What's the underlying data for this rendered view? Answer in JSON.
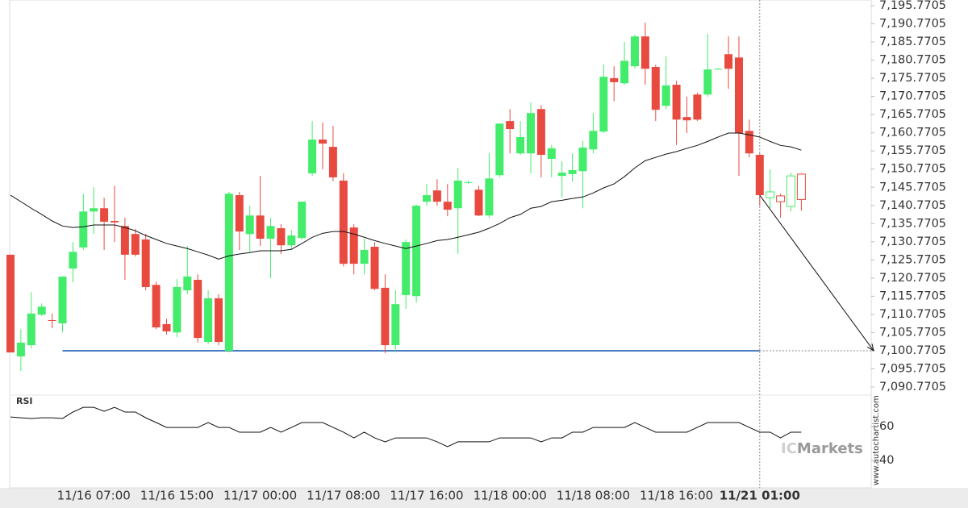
{
  "chart_data": {
    "type": "candlestick",
    "categories": [
      null,
      null,
      null,
      null,
      null,
      null,
      null,
      null,
      "11/16 07:00",
      null,
      null,
      null,
      null,
      null,
      null,
      null,
      "11/16 15:00",
      null,
      null,
      null,
      null,
      null,
      null,
      null,
      "11/17 00:00",
      null,
      null,
      null,
      null,
      null,
      null,
      null,
      "11/17 08:00",
      null,
      null,
      null,
      null,
      null,
      null,
      null,
      "11/17 16:00",
      null,
      null,
      null,
      null,
      null,
      null,
      null,
      "11/18 00:00",
      null,
      null,
      null,
      null,
      null,
      null,
      null,
      "11/18 08:00",
      null,
      null,
      null,
      null,
      null,
      null,
      null,
      "11/18 16:00",
      null,
      null,
      null,
      null,
      null,
      null,
      null,
      "11/21 01:00",
      null,
      null,
      null,
      null
    ],
    "open": [
      7127.2,
      7099.2,
      7102.3,
      7110.7,
      7109.2,
      7108.3,
      7123.4,
      7129.2,
      7139.1,
      7140.0,
      7136.5,
      7135.1,
      7132.9,
      7131.4,
      7118.9,
      7108.1,
      7105.8,
      7117.4,
      7120.3,
      7103.2,
      7115.2,
      7100.7,
      7143.6,
      7132.9,
      7138.0,
      7131.6,
      7134.5,
      7129.8,
      7131.8,
      7149.6,
      7158.9,
      7156.9,
      7147.6,
      7134.7,
      7124.7,
      7129.4,
      7118.1,
      7102.3,
      7116.1,
      7115.8,
      7141.8,
      7144.9,
      7141.8,
      7140.0,
      7147.1,
      7145.1,
      7138.0,
      7149.1,
      7164.0,
      7155.1,
      7155.1,
      7167.3,
      7153.6,
      7148.9,
      7149.4,
      7150.2,
      7156.2,
      7161.1,
      7175.8,
      7174.4,
      7179.1,
      7187.3,
      7178.9,
      7168.2,
      7174.0,
      7165.1,
      7171.3,
      7171.3,
      7178.3,
      7182.4,
      7181.5,
      7161.3,
      7154.7,
      7142.9,
      7143.4,
      7140.5,
      7149.4
    ],
    "high": [
      7127.2,
      7106.7,
      7116.9,
      7113.8,
      7111.0,
      7121.2,
      7130.7,
      7144.0,
      7145.8,
      7142.9,
      7146.2,
      7137.4,
      7134.3,
      7132.9,
      7119.8,
      7109.6,
      7120.5,
      7129.6,
      7121.8,
      7117.4,
      7116.3,
      7144.5,
      7144.5,
      7140.7,
      7148.9,
      7137.4,
      7135.6,
      7134.0,
      7141.8,
      7164.0,
      7163.6,
      7162.7,
      7149.6,
      7135.6,
      7131.6,
      7130.7,
      7121.8,
      7117.4,
      7131.4,
      7141.0,
      7146.7,
      7148.0,
      7146.7,
      7151.1,
      7147.6,
      7146.2,
      7155.1,
      7163.3,
      7167.3,
      7164.0,
      7169.1,
      7168.4,
      7157.4,
      7152.9,
      7155.1,
      7158.5,
      7166.2,
      7179.5,
      7179.1,
      7185.8,
      7187.8,
      7191.1,
      7179.5,
      7181.8,
      7175.1,
      7170.7,
      7171.8,
      7188.0,
      7178.6,
      7187.3,
      7187.3,
      7164.4,
      7155.1,
      7150.7,
      7144.0,
      7149.8,
      7149.6
    ],
    "low": [
      7100.3,
      7095.2,
      7101.4,
      7110.3,
      7107.0,
      7105.8,
      7119.6,
      7128.5,
      7132.9,
      7128.5,
      7130.7,
      7120.3,
      7126.7,
      7117.4,
      7106.7,
      7105.2,
      7104.5,
      7116.3,
      7103.0,
      7102.5,
      7102.3,
      7100.3,
      7128.5,
      7128.0,
      7129.6,
      7120.7,
      7127.4,
      7128.5,
      7131.4,
      7148.9,
      7150.7,
      7147.4,
      7124.0,
      7121.8,
      7121.8,
      7117.4,
      7100.1,
      7100.3,
      7112.3,
      7114.0,
      7140.7,
      7140.7,
      7137.8,
      7127.4,
      7146.7,
      7137.8,
      7137.4,
      7148.5,
      7155.1,
      7154.7,
      7149.6,
      7148.5,
      7148.5,
      7142.9,
      7147.4,
      7140.0,
      7155.1,
      7160.7,
      7169.5,
      7174.0,
      7178.4,
      7174.0,
      7164.0,
      7167.3,
      7157.4,
      7160.7,
      7164.0,
      7170.7,
      7178.2,
      7172.9,
      7148.9,
      7154.0,
      7140.7,
      7140.0,
      7137.4,
      7139.1,
      7139.3
    ],
    "close": [
      7100.3,
      7103.0,
      7111.0,
      7112.9,
      7109.0,
      7121.2,
      7128.0,
      7139.1,
      7140.0,
      7136.3,
      7136.1,
      7127.2,
      7127.2,
      7118.3,
      7107.2,
      7106.1,
      7118.3,
      7121.2,
      7104.3,
      7115.2,
      7103.2,
      7144.0,
      7133.6,
      7138.0,
      7131.6,
      7135.1,
      7129.8,
      7132.5,
      7141.8,
      7158.9,
      7157.8,
      7148.5,
      7124.7,
      7124.7,
      7128.5,
      7117.8,
      7102.3,
      7113.6,
      7130.7,
      7140.7,
      7143.6,
      7141.8,
      7139.6,
      7147.6,
      7147.2,
      7138.0,
      7148.2,
      7163.3,
      7161.8,
      7159.6,
      7166.2,
      7154.7,
      7156.5,
      7149.8,
      7150.5,
      7156.7,
      7161.3,
      7176.2,
      7174.7,
      7180.6,
      7187.3,
      7178.4,
      7167.1,
      7173.8,
      7164.4,
      7164.2,
      7164.4,
      7178.2,
      7178.4,
      7178.4,
      7160.7,
      7155.1,
      7143.6,
      7144.5,
      7141.8,
      7148.9,
      7142.4
    ],
    "moving_average": [
      7143.6,
      7141.8,
      7140.0,
      7138.3,
      7136.5,
      7135.1,
      7134.7,
      7134.9,
      7135.4,
      7135.4,
      7135.4,
      7134.7,
      7133.8,
      7132.5,
      7131.4,
      7130.3,
      7129.6,
      7128.9,
      7128.0,
      7127.1,
      7126.0,
      7126.9,
      7127.4,
      7127.8,
      7128.3,
      7128.3,
      7128.3,
      7128.7,
      7130.3,
      7132.0,
      7133.1,
      7133.6,
      7133.6,
      7132.9,
      7132.0,
      7131.1,
      7130.3,
      7129.6,
      7128.9,
      7129.6,
      7130.3,
      7131.1,
      7131.4,
      7132.0,
      7132.7,
      7133.4,
      7134.5,
      7135.8,
      7137.4,
      7138.3,
      7140.0,
      7140.5,
      7141.8,
      7142.2,
      7142.7,
      7143.1,
      7144.2,
      7145.6,
      7146.7,
      7148.7,
      7151.1,
      7153.1,
      7154.0,
      7154.9,
      7155.6,
      7156.5,
      7157.3,
      7158.4,
      7159.6,
      7160.7,
      7160.7,
      7160.2,
      7159.6,
      7158.4,
      7157.3,
      7156.9,
      7156.0
    ],
    "up_color": "#44ec6c",
    "down_color": "#e84a40",
    "ma_color": "#111111",
    "support_color": "#4a7cc4",
    "support": 7100.7705,
    "ylim": [
      7088.55,
      7197.33
    ],
    "yticks": [
      {
        "value": 7195.7705,
        "label": "7,195.7705"
      },
      {
        "value": 7190.7705,
        "label": "7,190.7705"
      },
      {
        "value": 7185.7705,
        "label": "7,185.7705"
      },
      {
        "value": 7180.7705,
        "label": "7,180.7705"
      },
      {
        "value": 7175.7705,
        "label": "7,175.7705"
      },
      {
        "value": 7170.7705,
        "label": "7,170.7705"
      },
      {
        "value": 7165.7705,
        "label": "7,165.7705"
      },
      {
        "value": 7160.7705,
        "label": "7,160.7705"
      },
      {
        "value": 7155.7705,
        "label": "7,155.7705"
      },
      {
        "value": 7150.7705,
        "label": "7,150.7705"
      },
      {
        "value": 7145.7705,
        "label": "7,145.7705"
      },
      {
        "value": 7140.7705,
        "label": "7,140.7705"
      },
      {
        "value": 7135.7705,
        "label": "7,135.7705"
      },
      {
        "value": 7130.7705,
        "label": "7,130.7705"
      },
      {
        "value": 7125.7705,
        "label": "7,125.7705"
      },
      {
        "value": 7120.7705,
        "label": "7,120.7705"
      },
      {
        "value": 7115.7705,
        "label": "7,115.7705"
      },
      {
        "value": 7110.7705,
        "label": "7,110.7705"
      },
      {
        "value": 7105.7705,
        "label": "7,105.7705"
      },
      {
        "value": 7100.7705,
        "label": "7,100.7705"
      },
      {
        "value": 7095.7705,
        "label": "7,095.7705"
      },
      {
        "value": 7090.7705,
        "label": "7,090.7705"
      }
    ],
    "rsi": {
      "label": "RSI",
      "ylim": [
        23.8,
        78.6
      ],
      "yticks": [
        60,
        40
      ],
      "values": [
        65.7,
        65.2,
        64.8,
        65.2,
        65.2,
        64.8,
        68.6,
        71.4,
        71.4,
        69.0,
        71.4,
        68.6,
        68.6,
        65.2,
        62.4,
        59.5,
        59.5,
        59.5,
        59.5,
        62.4,
        59.5,
        59.5,
        56.7,
        56.7,
        56.7,
        59.5,
        56.7,
        59.5,
        62.4,
        62.4,
        62.4,
        59.5,
        56.7,
        53.3,
        56.7,
        53.3,
        51.0,
        53.3,
        53.3,
        53.3,
        53.3,
        51.0,
        48.1,
        51.0,
        51.0,
        51.0,
        51.0,
        53.3,
        53.3,
        53.3,
        53.3,
        51.0,
        53.3,
        53.3,
        56.7,
        56.7,
        59.5,
        59.5,
        59.5,
        59.5,
        62.4,
        59.5,
        56.7,
        56.7,
        56.7,
        56.7,
        59.5,
        62.4,
        62.4,
        62.4,
        62.4,
        59.5,
        56.7,
        56.7,
        53.3,
        56.7,
        56.7
      ]
    },
    "watermark": "www.autochartist.com",
    "logo": {
      "prefix": "IC",
      "name": "Markets"
    }
  }
}
